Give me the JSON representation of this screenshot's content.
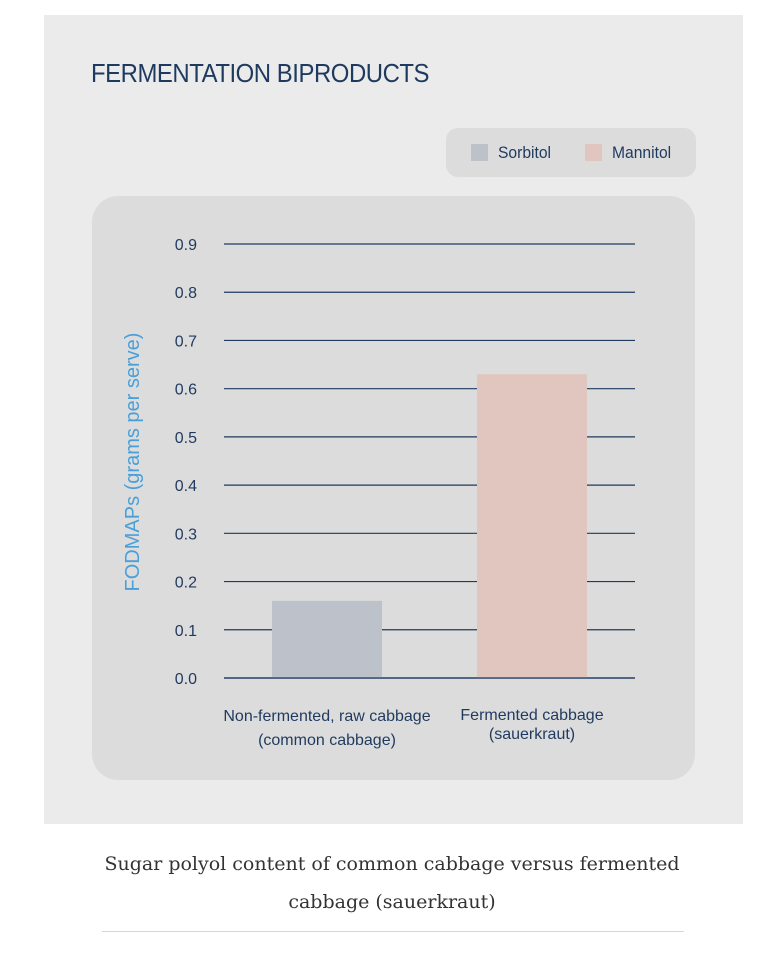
{
  "figure": {
    "title": "FERMENTATION BIPRODUCTS"
  },
  "chart_data": {
    "type": "bar",
    "title": "FERMENTATION BIPRODUCTS",
    "ylabel": "FODMAPs (grams per serve)",
    "xlabel": "",
    "categories": [
      "Non-fermented, raw cabbage (common cabbage)",
      "Fermented cabbage (sauerkraut)"
    ],
    "category_lines": [
      [
        "Non-fermented, raw cabbage",
        "(common cabbage)"
      ],
      [
        "Fermented cabbage",
        "(sauerkraut)"
      ]
    ],
    "series": [
      {
        "name": "Sorbitol",
        "color": "#bcc1ca",
        "values": [
          0.16,
          null
        ]
      },
      {
        "name": "Mannitol",
        "color": "#e1c6bf",
        "values": [
          null,
          0.63
        ]
      }
    ],
    "ylim": [
      0,
      0.9
    ],
    "yticks": [
      "0.0",
      "0.1",
      "0.2",
      "0.3",
      "0.4",
      "0.5",
      "0.6",
      "0.7",
      "0.8",
      "0.9"
    ],
    "grid": true,
    "legend_position": "top-right",
    "colors": {
      "axis_text": "#1f3a5f",
      "ylabel": "#4a9fd8",
      "gridline": "#1f3a5f"
    }
  },
  "caption": {
    "text": "Sugar polyol content of common cabbage versus fermented cabbage (sauerkraut)"
  }
}
